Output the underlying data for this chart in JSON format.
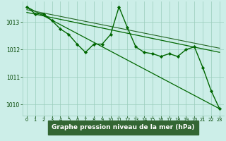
{
  "title": "Graphe pression niveau de la mer (hPa)",
  "background_color": "#cceee8",
  "grid_color": "#99ccbb",
  "line_color_main": "#004400",
  "xlim": [
    -0.5,
    23.5
  ],
  "ylim": [
    1009.6,
    1013.75
  ],
  "yticks": [
    1010,
    1011,
    1012,
    1013
  ],
  "xticks": [
    0,
    1,
    2,
    3,
    4,
    5,
    6,
    7,
    8,
    9,
    10,
    11,
    12,
    13,
    14,
    15,
    16,
    17,
    18,
    19,
    20,
    21,
    22,
    23
  ],
  "series_main": {
    "x": [
      0,
      1,
      2,
      3,
      4,
      5,
      6,
      7,
      8,
      9,
      10,
      11,
      12,
      13,
      14,
      15,
      16,
      17,
      18,
      19,
      20,
      21,
      22,
      23
    ],
    "y": [
      1013.55,
      1013.3,
      1013.3,
      1013.05,
      1012.75,
      1012.55,
      1012.2,
      1011.9,
      1012.2,
      1012.2,
      1012.55,
      1013.55,
      1012.8,
      1012.1,
      1011.9,
      1011.85,
      1011.75,
      1011.85,
      1011.75,
      1012.0,
      1012.1,
      1011.35,
      1010.5,
      1009.85
    ],
    "color": "#006600",
    "marker": "D",
    "markersize": 2.2,
    "linewidth": 1.0
  },
  "trend_lines": [
    {
      "x0": 0,
      "y0": 1013.55,
      "x1": 23,
      "y1": 1009.85,
      "color": "#006600",
      "linewidth": 0.9
    },
    {
      "x0": 0,
      "y0": 1013.35,
      "x1": 23,
      "y1": 1011.9,
      "color": "#006600",
      "linewidth": 0.9
    },
    {
      "x0": 0,
      "y0": 1013.45,
      "x1": 23,
      "y1": 1012.05,
      "color": "#226622",
      "linewidth": 0.8
    }
  ],
  "label_bg_color": "#336633",
  "label_text_color": "#ffffff",
  "tick_color": "#004400",
  "xlabel_fontsize": 6.5,
  "ytick_fontsize": 5.5,
  "xtick_fontsize": 4.8
}
